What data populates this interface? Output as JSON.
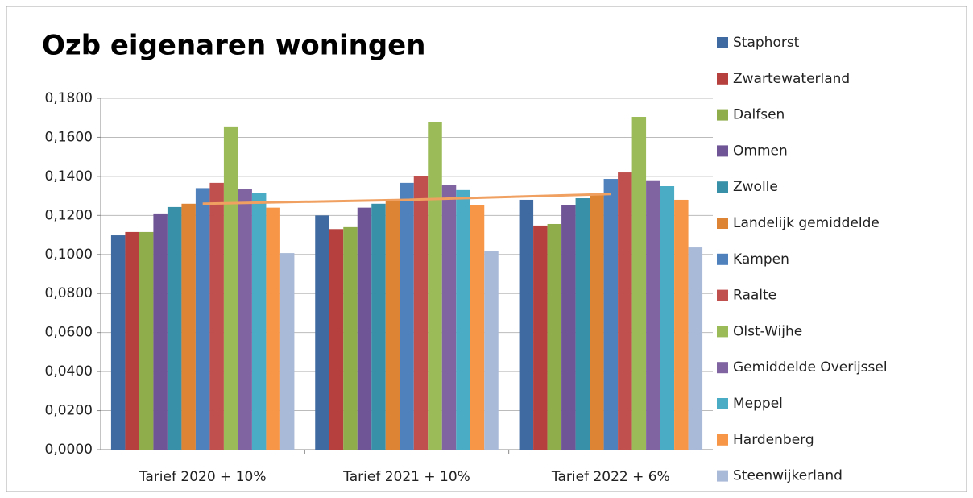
{
  "chart_data": {
    "type": "bar",
    "title": "Ozb eigenaren woningen",
    "categories": [
      "Tarief  2020 + 10%",
      "Tarief  2021 + 10%",
      "Tarief  2022 + 6%"
    ],
    "series": [
      {
        "name": "Staphorst",
        "color": "#3e6aa1",
        "values": [
          0.1098,
          0.12,
          0.128
        ]
      },
      {
        "name": "Zwartewaterland",
        "color": "#b5403e",
        "values": [
          0.1115,
          0.113,
          0.1148
        ]
      },
      {
        "name": "Dalfsen",
        "color": "#8fae4b",
        "values": [
          0.1115,
          0.114,
          0.1156
        ]
      },
      {
        "name": "Ommen",
        "color": "#6f5595",
        "values": [
          0.121,
          0.124,
          0.1255
        ]
      },
      {
        "name": "Zwolle",
        "color": "#3890a8",
        "values": [
          0.1243,
          0.126,
          0.1288
        ]
      },
      {
        "name": "Landelijk gemiddelde",
        "color": "#dc8434",
        "values": [
          0.126,
          0.128,
          0.131
        ]
      },
      {
        "name": "Kampen",
        "color": "#4f81bd",
        "values": [
          0.134,
          0.1367,
          0.1387
        ]
      },
      {
        "name": "Raalte",
        "color": "#c0504d",
        "values": [
          0.1367,
          0.14,
          0.142
        ]
      },
      {
        "name": "Olst-Wijhe",
        "color": "#9bbb59",
        "values": [
          0.1656,
          0.168,
          0.1705
        ]
      },
      {
        "name": "Gemiddelde Overijssel",
        "color": "#8064a2",
        "values": [
          0.1334,
          0.1358,
          0.138
        ]
      },
      {
        "name": "Meppel",
        "color": "#4bacc6",
        "values": [
          0.1313,
          0.133,
          0.135
        ]
      },
      {
        "name": "Hardenberg",
        "color": "#f79646",
        "values": [
          0.124,
          0.1255,
          0.128
        ]
      },
      {
        "name": "Steenwijkerland",
        "color": "#a9bad8",
        "values": [
          0.1007,
          0.1016,
          0.1036
        ]
      }
    ],
    "trend_series": 5,
    "trend_color": "#f0a060",
    "ylim": [
      0,
      0.18
    ],
    "yticks": [
      {
        "value": 0,
        "label": "0,0000"
      },
      {
        "value": 0.02,
        "label": "0,0200"
      },
      {
        "value": 0.04,
        "label": "0,0400"
      },
      {
        "value": 0.06,
        "label": "0,0600"
      },
      {
        "value": 0.08,
        "label": "0,0800"
      },
      {
        "value": 0.1,
        "label": "0,1000"
      },
      {
        "value": 0.12,
        "label": "0,1200"
      },
      {
        "value": 0.14,
        "label": "0,1400"
      },
      {
        "value": 0.16,
        "label": "0,1600"
      },
      {
        "value": 0.18,
        "label": "0,1800"
      }
    ],
    "grid": true,
    "legend": "right"
  }
}
